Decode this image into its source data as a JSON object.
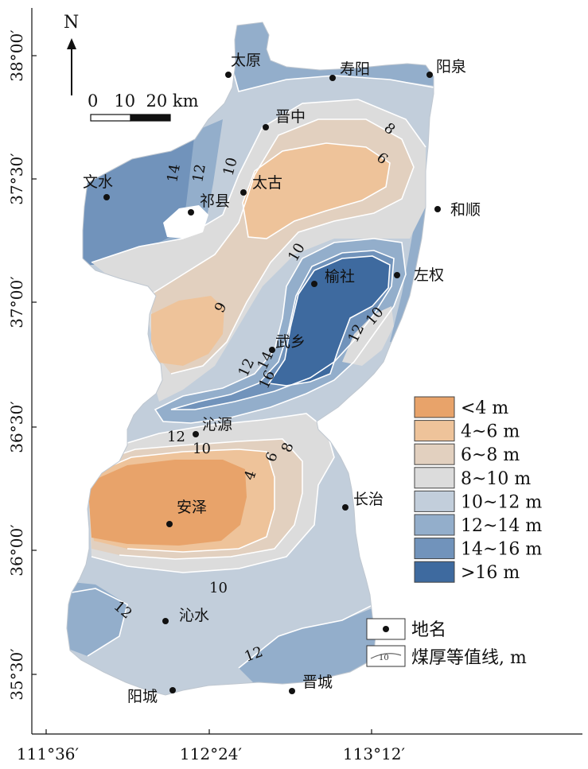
{
  "north_arrow": {
    "label": "N"
  },
  "scale_bar": {
    "label": "0   10  20 km"
  },
  "axes": {
    "y_ticks": [
      "38°00′",
      "37°30′",
      "37°00′",
      "36°30′",
      "36°00′",
      "35°30′"
    ],
    "x_ticks": [
      "111°36′",
      "112°24′",
      "113°12′"
    ]
  },
  "places": [
    {
      "name": "太原"
    },
    {
      "name": "寿阳"
    },
    {
      "name": "阳泉"
    },
    {
      "name": "晋中"
    },
    {
      "name": "文水"
    },
    {
      "name": "祁县"
    },
    {
      "name": "太古"
    },
    {
      "name": "和顺"
    },
    {
      "name": "榆社"
    },
    {
      "name": "左权"
    },
    {
      "name": "武乡"
    },
    {
      "name": "沁源"
    },
    {
      "name": "长治"
    },
    {
      "name": "安泽"
    },
    {
      "name": "沁水"
    },
    {
      "name": "阳城"
    },
    {
      "name": "晋城"
    }
  ],
  "contour_labels": [
    "14",
    "12",
    "10",
    "8",
    "6",
    "10",
    "9",
    "12",
    "10",
    "12",
    "14",
    "16",
    "12",
    "10",
    "8",
    "6",
    "4",
    "10",
    "12",
    "12"
  ],
  "legend": {
    "items": [
      {
        "label": "<4 m",
        "color": "#e8a36a"
      },
      {
        "label": "4~6 m",
        "color": "#eec39a"
      },
      {
        "label": "6~8 m",
        "color": "#e2d0bf"
      },
      {
        "label": "8~10 m",
        "color": "#dcdcdc"
      },
      {
        "label": "10~12 m",
        "color": "#c2cedb"
      },
      {
        "label": "12~14 m",
        "color": "#93aecb"
      },
      {
        "label": "14~16 m",
        "color": "#7193bb"
      },
      {
        "label": ">16 m",
        "color": "#3e6a9f"
      }
    ],
    "symbols": [
      {
        "label": "地名",
        "icon": "place-dot-icon"
      },
      {
        "label": "煤厚等值线, m",
        "icon": "contour-line-icon"
      }
    ]
  },
  "colors": {
    "lt4": "#e8a36a",
    "4to6": "#eec39a",
    "6to8": "#e2d0bf",
    "8to10": "#dcdcdc",
    "10to12": "#c2cedb",
    "12to14": "#93aecb",
    "14to16": "#7193bb",
    "gt16": "#3e6a9f"
  }
}
